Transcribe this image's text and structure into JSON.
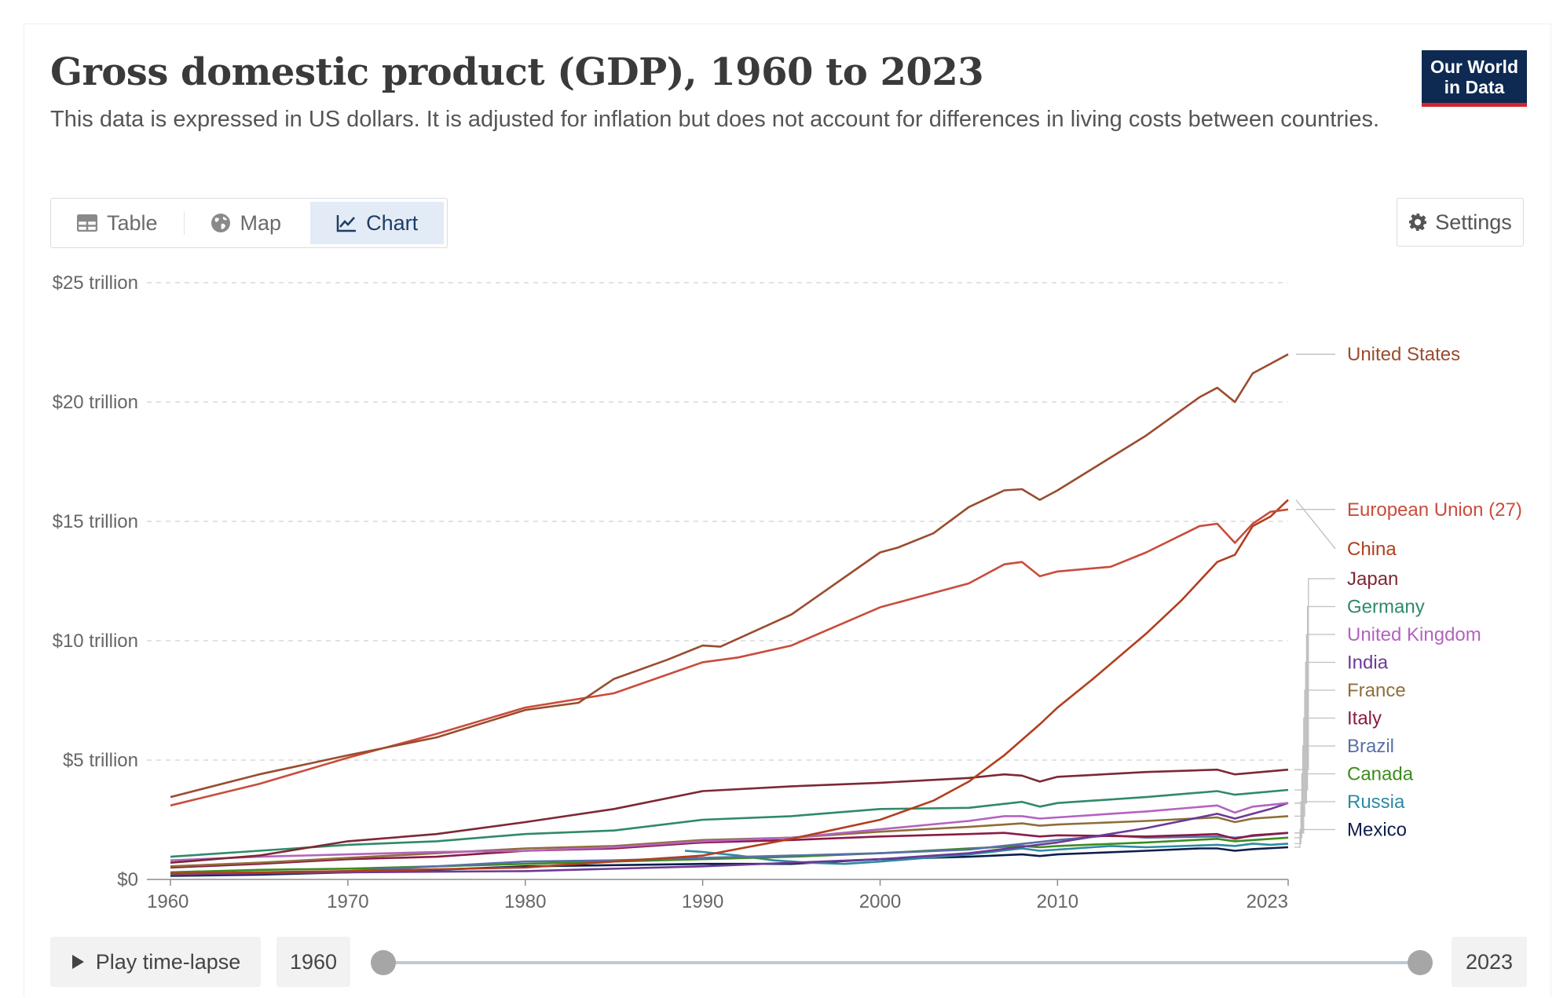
{
  "header": {
    "title": "Gross domestic product (GDP), 1960 to 2023",
    "subtitle": "This data is expressed in US dollars. It is adjusted for inflation but does not account for differences in living costs between countries.",
    "logo_line1": "Our World",
    "logo_line2": "in Data"
  },
  "tabs": [
    {
      "label": "Table",
      "icon": "table-icon"
    },
    {
      "label": "Map",
      "icon": "globe-icon"
    },
    {
      "label": "Chart",
      "icon": "line-chart-icon",
      "active": true
    }
  ],
  "settings_label": "Settings",
  "timeline": {
    "play_label": "Play time-lapse",
    "start_year": "1960",
    "end_year": "2023",
    "start_value": 1960,
    "end_value": 2023
  },
  "colors": {
    "United States": "#9a4c2f",
    "China": "#b13f1d",
    "European Union (27)": "#c94c3c",
    "Japan": "#7d2833",
    "Germany": "#2f8a68",
    "United Kingdom": "#b463c0",
    "India": "#6b3a96",
    "France": "#8f6e3a",
    "Italy": "#8a1b45",
    "Brazil": "#586fa8",
    "Canada": "#3c8c1e",
    "Russia": "#2e8aa3",
    "Mexico": "#0c1e4c"
  },
  "chart_data": {
    "type": "line",
    "x_ticks": [
      1960,
      1970,
      1980,
      1990,
      2000,
      2010,
      2023
    ],
    "y_ticks": [
      {
        "value": 0,
        "label": "$0"
      },
      {
        "value": 5,
        "label": "$5 trillion"
      },
      {
        "value": 10,
        "label": "$10 trillion"
      },
      {
        "value": 15,
        "label": "$15 trillion"
      },
      {
        "value": 20,
        "label": "$20 trillion"
      },
      {
        "value": 25,
        "label": "$25 trillion"
      }
    ],
    "xlim": [
      1960,
      2023
    ],
    "ylim": [
      0,
      25
    ],
    "grid": "horizontal dashed",
    "legend": "right, inline labels",
    "series": [
      {
        "name": "United States",
        "points": [
          [
            1960,
            3.45
          ],
          [
            1965,
            4.4
          ],
          [
            1970,
            5.2
          ],
          [
            1975,
            5.95
          ],
          [
            1980,
            7.1
          ],
          [
            1983,
            7.4
          ],
          [
            1985,
            8.4
          ],
          [
            1988,
            9.2
          ],
          [
            1990,
            9.8
          ],
          [
            1991,
            9.75
          ],
          [
            1995,
            11.1
          ],
          [
            2000,
            13.7
          ],
          [
            2001,
            13.9
          ],
          [
            2003,
            14.5
          ],
          [
            2005,
            15.6
          ],
          [
            2007,
            16.3
          ],
          [
            2008,
            16.35
          ],
          [
            2009,
            15.9
          ],
          [
            2010,
            16.3
          ],
          [
            2015,
            18.6
          ],
          [
            2018,
            20.2
          ],
          [
            2019,
            20.6
          ],
          [
            2020,
            20.0
          ],
          [
            2021,
            21.2
          ],
          [
            2022,
            21.6
          ],
          [
            2023,
            22.0
          ]
        ]
      },
      {
        "name": "European Union (27)",
        "points": [
          [
            1960,
            3.1
          ],
          [
            1965,
            4.0
          ],
          [
            1970,
            5.1
          ],
          [
            1975,
            6.1
          ],
          [
            1980,
            7.2
          ],
          [
            1985,
            7.8
          ],
          [
            1990,
            9.1
          ],
          [
            1992,
            9.3
          ],
          [
            1995,
            9.8
          ],
          [
            2000,
            11.4
          ],
          [
            2005,
            12.4
          ],
          [
            2007,
            13.2
          ],
          [
            2008,
            13.3
          ],
          [
            2009,
            12.7
          ],
          [
            2010,
            12.9
          ],
          [
            2013,
            13.1
          ],
          [
            2015,
            13.7
          ],
          [
            2018,
            14.8
          ],
          [
            2019,
            14.9
          ],
          [
            2020,
            14.1
          ],
          [
            2021,
            14.9
          ],
          [
            2022,
            15.4
          ],
          [
            2023,
            15.5
          ]
        ]
      },
      {
        "name": "China",
        "points": [
          [
            1960,
            0.25
          ],
          [
            1970,
            0.35
          ],
          [
            1980,
            0.5
          ],
          [
            1985,
            0.75
          ],
          [
            1990,
            1.0
          ],
          [
            1995,
            1.7
          ],
          [
            2000,
            2.5
          ],
          [
            2003,
            3.3
          ],
          [
            2005,
            4.1
          ],
          [
            2007,
            5.2
          ],
          [
            2009,
            6.5
          ],
          [
            2010,
            7.2
          ],
          [
            2012,
            8.4
          ],
          [
            2015,
            10.3
          ],
          [
            2017,
            11.7
          ],
          [
            2019,
            13.3
          ],
          [
            2020,
            13.6
          ],
          [
            2021,
            14.8
          ],
          [
            2022,
            15.2
          ],
          [
            2023,
            15.9
          ]
        ]
      },
      {
        "name": "Japan",
        "points": [
          [
            1960,
            0.7
          ],
          [
            1965,
            1.0
          ],
          [
            1970,
            1.6
          ],
          [
            1975,
            1.9
          ],
          [
            1980,
            2.4
          ],
          [
            1985,
            2.95
          ],
          [
            1990,
            3.7
          ],
          [
            1995,
            3.9
          ],
          [
            2000,
            4.05
          ],
          [
            2005,
            4.25
          ],
          [
            2007,
            4.4
          ],
          [
            2008,
            4.35
          ],
          [
            2009,
            4.1
          ],
          [
            2010,
            4.3
          ],
          [
            2015,
            4.5
          ],
          [
            2019,
            4.6
          ],
          [
            2020,
            4.4
          ],
          [
            2023,
            4.6
          ]
        ]
      },
      {
        "name": "Germany",
        "points": [
          [
            1960,
            0.95
          ],
          [
            1965,
            1.2
          ],
          [
            1970,
            1.45
          ],
          [
            1975,
            1.6
          ],
          [
            1980,
            1.9
          ],
          [
            1985,
            2.05
          ],
          [
            1990,
            2.5
          ],
          [
            1995,
            2.65
          ],
          [
            2000,
            2.95
          ],
          [
            2005,
            3.0
          ],
          [
            2008,
            3.25
          ],
          [
            2009,
            3.05
          ],
          [
            2010,
            3.2
          ],
          [
            2015,
            3.45
          ],
          [
            2019,
            3.7
          ],
          [
            2020,
            3.55
          ],
          [
            2023,
            3.75
          ]
        ]
      },
      {
        "name": "United Kingdom",
        "points": [
          [
            1960,
            0.8
          ],
          [
            1965,
            0.95
          ],
          [
            1970,
            1.05
          ],
          [
            1975,
            1.15
          ],
          [
            1980,
            1.2
          ],
          [
            1985,
            1.35
          ],
          [
            1990,
            1.6
          ],
          [
            1995,
            1.75
          ],
          [
            2000,
            2.1
          ],
          [
            2005,
            2.45
          ],
          [
            2007,
            2.65
          ],
          [
            2008,
            2.65
          ],
          [
            2009,
            2.55
          ],
          [
            2010,
            2.6
          ],
          [
            2015,
            2.85
          ],
          [
            2019,
            3.1
          ],
          [
            2020,
            2.8
          ],
          [
            2021,
            3.05
          ],
          [
            2023,
            3.2
          ]
        ]
      },
      {
        "name": "India",
        "points": [
          [
            1960,
            0.2
          ],
          [
            1970,
            0.3
          ],
          [
            1980,
            0.35
          ],
          [
            1990,
            0.55
          ],
          [
            2000,
            0.85
          ],
          [
            2005,
            1.1
          ],
          [
            2010,
            1.55
          ],
          [
            2015,
            2.15
          ],
          [
            2019,
            2.75
          ],
          [
            2020,
            2.55
          ],
          [
            2021,
            2.75
          ],
          [
            2022,
            2.95
          ],
          [
            2023,
            3.2
          ]
        ]
      },
      {
        "name": "France",
        "points": [
          [
            1960,
            0.55
          ],
          [
            1965,
            0.7
          ],
          [
            1970,
            0.9
          ],
          [
            1975,
            1.1
          ],
          [
            1980,
            1.3
          ],
          [
            1985,
            1.4
          ],
          [
            1990,
            1.65
          ],
          [
            1995,
            1.75
          ],
          [
            2000,
            2.0
          ],
          [
            2005,
            2.2
          ],
          [
            2008,
            2.35
          ],
          [
            2009,
            2.25
          ],
          [
            2010,
            2.3
          ],
          [
            2015,
            2.45
          ],
          [
            2019,
            2.6
          ],
          [
            2020,
            2.4
          ],
          [
            2021,
            2.55
          ],
          [
            2023,
            2.65
          ]
        ]
      },
      {
        "name": "Italy",
        "points": [
          [
            1960,
            0.5
          ],
          [
            1965,
            0.65
          ],
          [
            1970,
            0.85
          ],
          [
            1975,
            0.95
          ],
          [
            1980,
            1.2
          ],
          [
            1985,
            1.3
          ],
          [
            1990,
            1.55
          ],
          [
            1995,
            1.65
          ],
          [
            2000,
            1.8
          ],
          [
            2005,
            1.9
          ],
          [
            2007,
            1.95
          ],
          [
            2009,
            1.8
          ],
          [
            2010,
            1.85
          ],
          [
            2015,
            1.8
          ],
          [
            2019,
            1.9
          ],
          [
            2020,
            1.7
          ],
          [
            2021,
            1.85
          ],
          [
            2023,
            1.95
          ]
        ]
      },
      {
        "name": "Brazil",
        "points": [
          [
            1960,
            0.2
          ],
          [
            1970,
            0.35
          ],
          [
            1975,
            0.55
          ],
          [
            1980,
            0.75
          ],
          [
            1985,
            0.8
          ],
          [
            1990,
            0.9
          ],
          [
            1995,
            1.0
          ],
          [
            2000,
            1.1
          ],
          [
            2005,
            1.25
          ],
          [
            2010,
            1.65
          ],
          [
            2013,
            1.85
          ],
          [
            2015,
            1.75
          ],
          [
            2019,
            1.8
          ],
          [
            2020,
            1.75
          ],
          [
            2023,
            1.95
          ]
        ]
      },
      {
        "name": "Canada",
        "points": [
          [
            1960,
            0.3
          ],
          [
            1965,
            0.4
          ],
          [
            1970,
            0.45
          ],
          [
            1975,
            0.55
          ],
          [
            1980,
            0.65
          ],
          [
            1985,
            0.75
          ],
          [
            1990,
            0.85
          ],
          [
            1995,
            0.95
          ],
          [
            2000,
            1.1
          ],
          [
            2005,
            1.3
          ],
          [
            2008,
            1.4
          ],
          [
            2009,
            1.35
          ],
          [
            2010,
            1.4
          ],
          [
            2015,
            1.55
          ],
          [
            2019,
            1.7
          ],
          [
            2020,
            1.6
          ],
          [
            2023,
            1.75
          ]
        ]
      },
      {
        "name": "Russia",
        "points": [
          [
            1989,
            1.2
          ],
          [
            1990,
            1.15
          ],
          [
            1992,
            1.0
          ],
          [
            1994,
            0.8
          ],
          [
            1996,
            0.7
          ],
          [
            1998,
            0.65
          ],
          [
            2000,
            0.75
          ],
          [
            2005,
            1.05
          ],
          [
            2008,
            1.3
          ],
          [
            2009,
            1.2
          ],
          [
            2010,
            1.25
          ],
          [
            2013,
            1.4
          ],
          [
            2015,
            1.35
          ],
          [
            2019,
            1.45
          ],
          [
            2020,
            1.4
          ],
          [
            2021,
            1.5
          ],
          [
            2022,
            1.45
          ],
          [
            2023,
            1.5
          ]
        ]
      },
      {
        "name": "Mexico",
        "points": [
          [
            1960,
            0.15
          ],
          [
            1965,
            0.2
          ],
          [
            1970,
            0.3
          ],
          [
            1975,
            0.4
          ],
          [
            1980,
            0.55
          ],
          [
            1985,
            0.6
          ],
          [
            1990,
            0.65
          ],
          [
            1995,
            0.65
          ],
          [
            2000,
            0.85
          ],
          [
            2005,
            0.95
          ],
          [
            2008,
            1.05
          ],
          [
            2009,
            0.98
          ],
          [
            2010,
            1.05
          ],
          [
            2015,
            1.2
          ],
          [
            2018,
            1.3
          ],
          [
            2019,
            1.3
          ],
          [
            2020,
            1.2
          ],
          [
            2021,
            1.27
          ],
          [
            2023,
            1.35
          ]
        ]
      }
    ]
  }
}
